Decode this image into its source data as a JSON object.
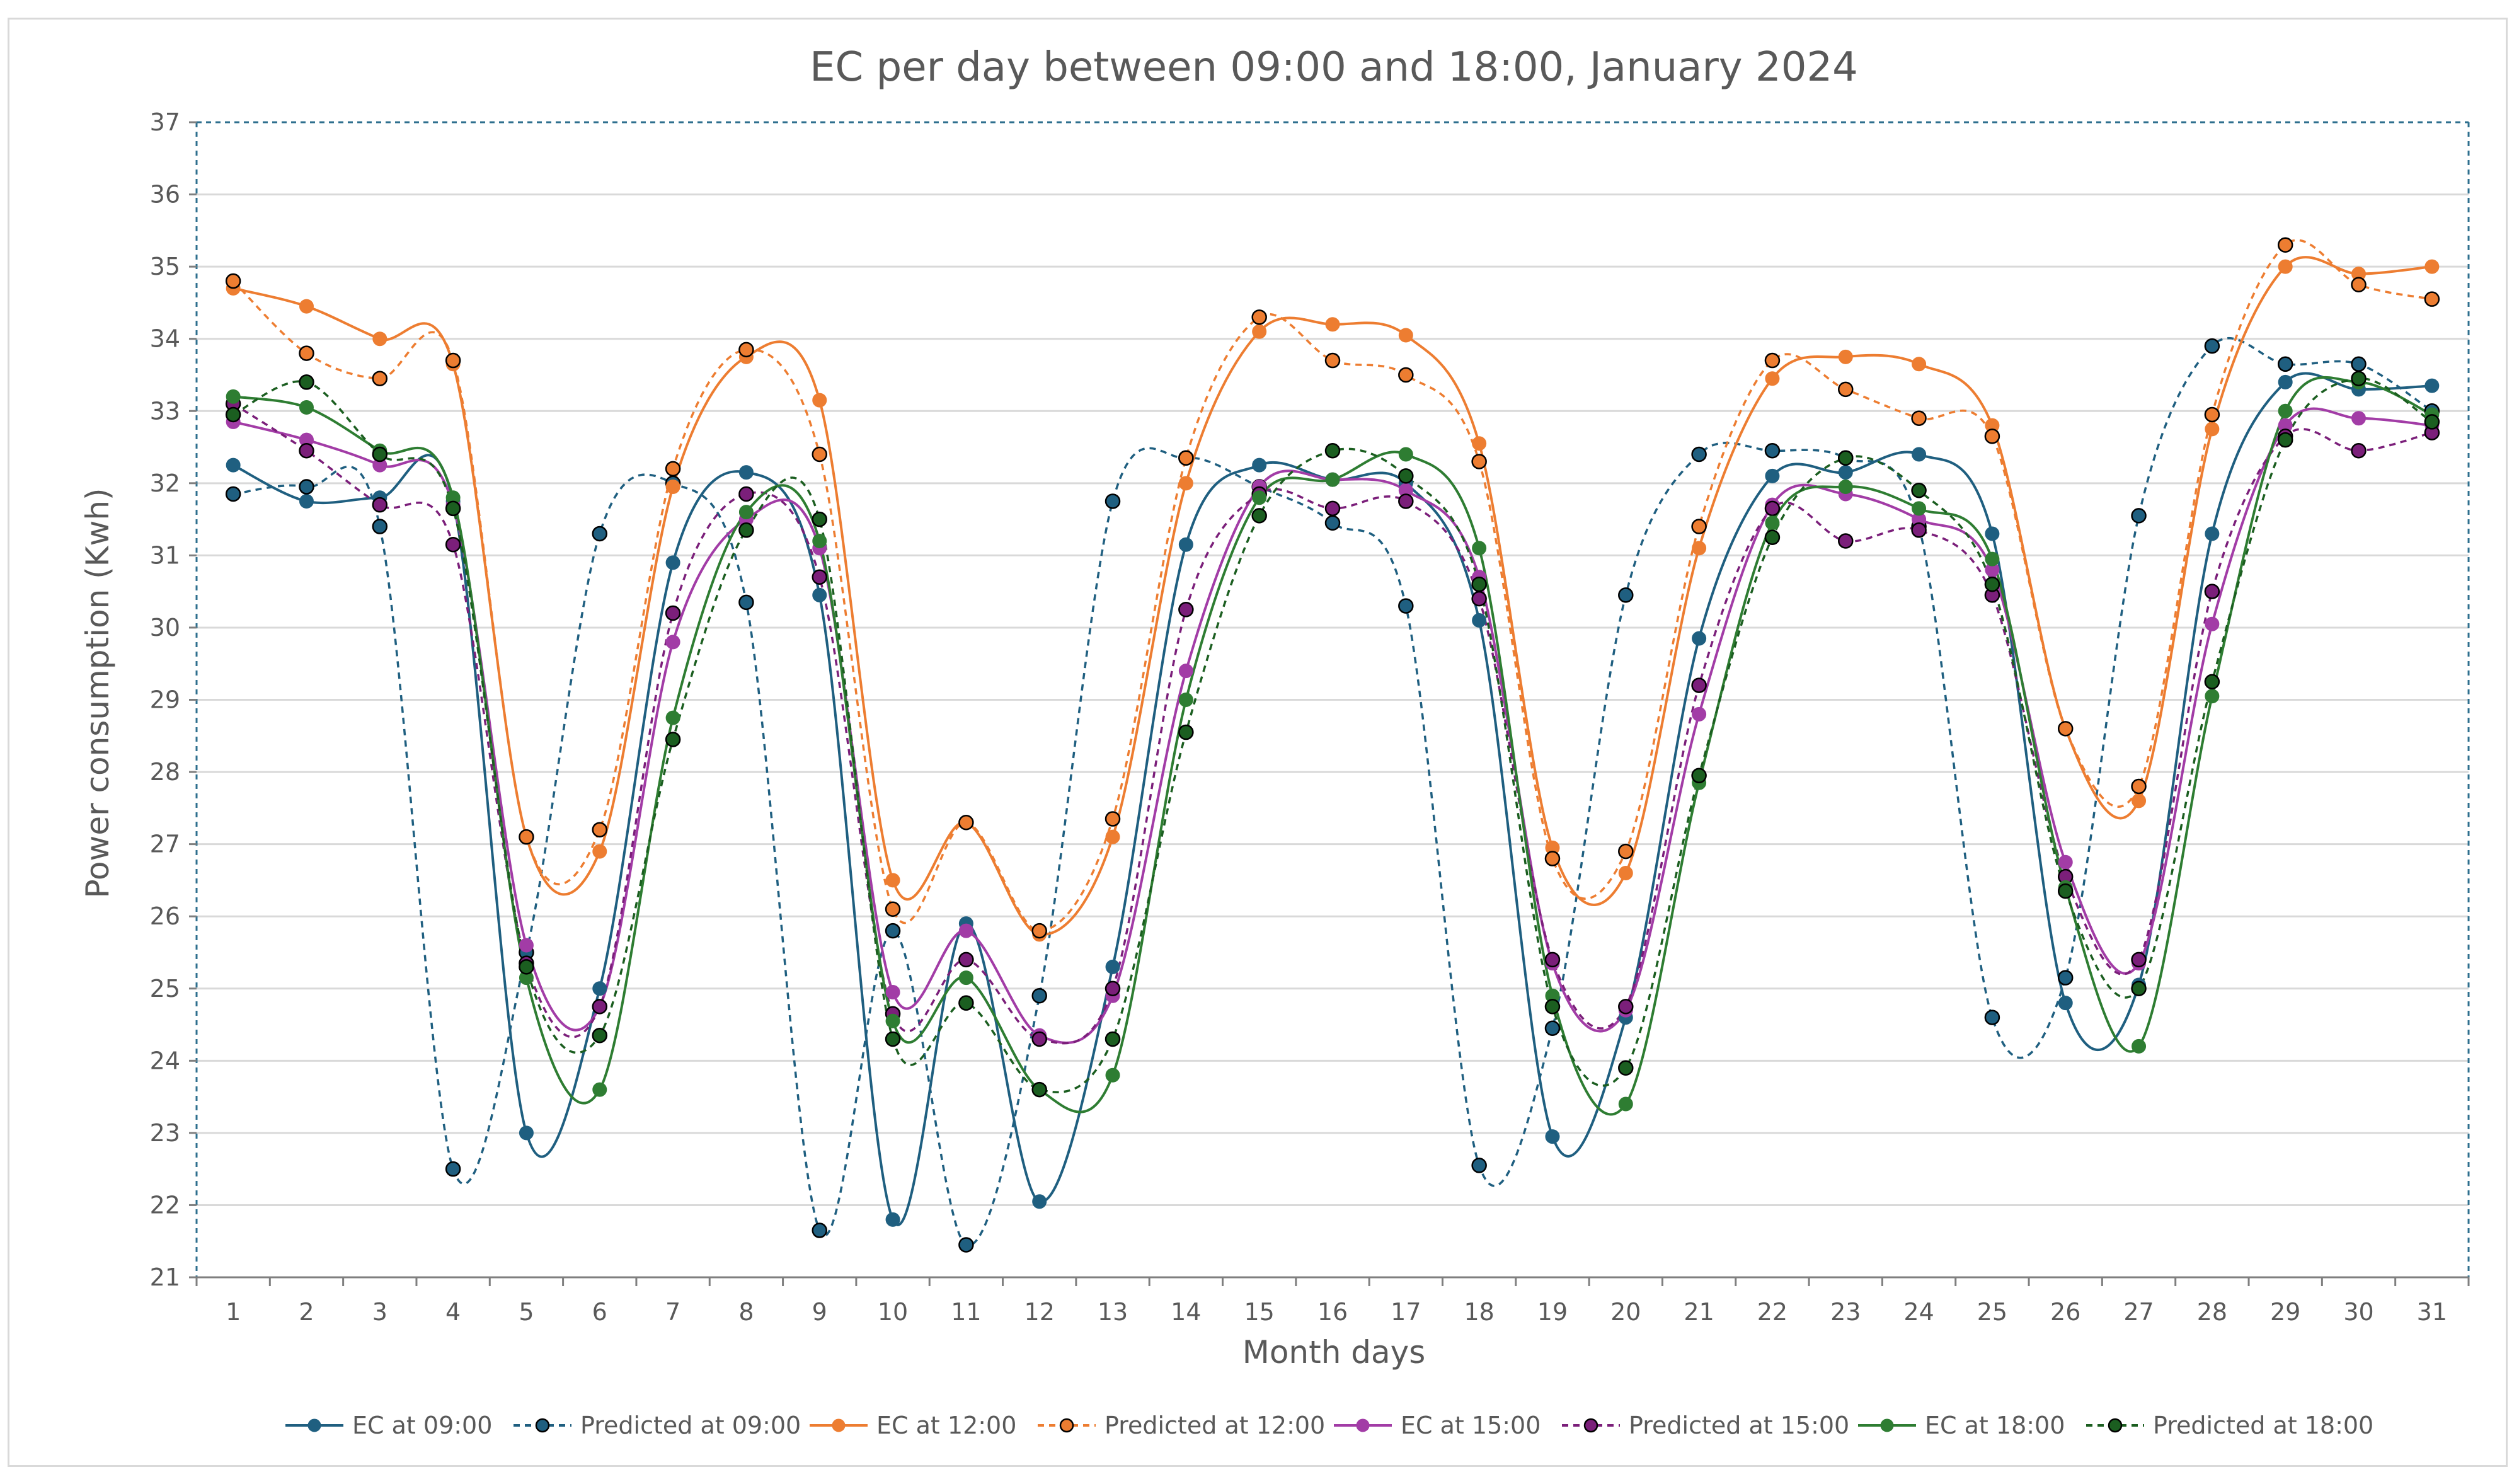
{
  "chart_data": {
    "type": "line",
    "title": "EC per day between 09:00 and 18:00, January 2024",
    "xlabel": "Month days",
    "ylabel": "Power consumption (Kwh)",
    "ylim": [
      21,
      37
    ],
    "yticks": [
      21,
      22,
      23,
      24,
      25,
      26,
      27,
      28,
      29,
      30,
      31,
      32,
      33,
      34,
      35,
      36,
      37
    ],
    "x": [
      1,
      2,
      3,
      4,
      5,
      6,
      7,
      8,
      9,
      10,
      11,
      12,
      13,
      14,
      15,
      16,
      17,
      18,
      19,
      20,
      21,
      22,
      23,
      24,
      25,
      26,
      27,
      28,
      29,
      30,
      31
    ],
    "grid": true,
    "legend": "bottom",
    "series": [
      {
        "name": "EC at 09:00",
        "color": "#1f5f80",
        "dashed": false,
        "values": [
          32.25,
          31.75,
          31.8,
          31.75,
          23.0,
          25.0,
          30.9,
          32.15,
          30.45,
          21.8,
          25.9,
          22.05,
          25.3,
          31.15,
          32.25,
          32.05,
          32.0,
          30.1,
          22.95,
          24.6,
          29.85,
          32.1,
          32.15,
          32.4,
          31.3,
          24.8,
          25.05,
          31.3,
          33.4,
          33.3,
          33.35
        ]
      },
      {
        "name": "Predicted at 09:00",
        "color": "#1f5f80",
        "dashed": true,
        "values": [
          31.85,
          31.95,
          31.4,
          22.5,
          25.5,
          31.3,
          32.0,
          30.35,
          21.65,
          25.8,
          21.45,
          24.9,
          31.75,
          32.35,
          31.95,
          31.45,
          30.3,
          22.55,
          24.45,
          30.45,
          32.4,
          32.45,
          32.35,
          31.4,
          24.6,
          25.15,
          31.55,
          33.9,
          33.65,
          33.65,
          33.0
        ]
      },
      {
        "name": "EC at 12:00",
        "color": "#ed7d31",
        "dashed": false,
        "values": [
          34.7,
          34.45,
          34.0,
          33.65,
          27.1,
          26.9,
          31.95,
          33.75,
          33.15,
          26.5,
          27.3,
          25.75,
          27.1,
          32.0,
          34.1,
          34.2,
          34.05,
          32.55,
          26.95,
          26.6,
          31.1,
          33.45,
          33.75,
          33.65,
          32.8,
          28.6,
          27.6,
          32.75,
          35.0,
          34.9,
          35.0
        ]
      },
      {
        "name": "Predicted at 12:00",
        "color": "#ed7d31",
        "dashed": true,
        "values": [
          34.8,
          33.8,
          33.45,
          33.7,
          27.1,
          27.2,
          32.2,
          33.85,
          32.4,
          26.1,
          27.3,
          25.8,
          27.35,
          32.35,
          34.3,
          33.7,
          33.5,
          32.3,
          26.8,
          26.9,
          31.4,
          33.7,
          33.3,
          32.9,
          32.65,
          28.6,
          27.8,
          32.95,
          35.3,
          34.75,
          34.55
        ]
      },
      {
        "name": "EC at 15:00",
        "color": "#a23ca6",
        "dashed": false,
        "values": [
          32.85,
          32.6,
          32.25,
          31.7,
          25.6,
          24.75,
          29.8,
          31.5,
          31.1,
          24.95,
          25.8,
          24.35,
          24.9,
          29.4,
          31.95,
          32.05,
          31.9,
          30.7,
          25.35,
          24.7,
          28.8,
          31.7,
          31.85,
          31.5,
          30.8,
          26.75,
          25.35,
          30.05,
          32.8,
          32.9,
          32.8
        ]
      },
      {
        "name": "Predicted at 15:00",
        "color": "#7b1f7a",
        "dashed": true,
        "values": [
          33.1,
          32.45,
          31.7,
          31.15,
          25.35,
          24.75,
          30.2,
          31.85,
          30.7,
          24.65,
          25.4,
          24.3,
          25.0,
          30.25,
          31.85,
          31.65,
          31.75,
          30.4,
          25.4,
          24.75,
          29.2,
          31.65,
          31.2,
          31.35,
          30.45,
          26.55,
          25.4,
          30.5,
          32.65,
          32.45,
          32.7
        ]
      },
      {
        "name": "EC at 18:00",
        "color": "#2e7d32",
        "dashed": false,
        "values": [
          33.2,
          33.05,
          32.45,
          31.8,
          25.15,
          23.6,
          28.75,
          31.6,
          31.2,
          24.55,
          25.15,
          23.6,
          23.8,
          29.0,
          31.8,
          32.05,
          32.4,
          31.1,
          24.9,
          23.4,
          27.85,
          31.45,
          31.95,
          31.65,
          30.95,
          26.4,
          24.2,
          29.05,
          33.0,
          33.4,
          32.95
        ]
      },
      {
        "name": "Predicted at 18:00",
        "color": "#1b5e20",
        "dashed": true,
        "values": [
          32.95,
          33.4,
          32.4,
          31.65,
          25.3,
          24.35,
          28.45,
          31.35,
          31.5,
          24.3,
          24.8,
          23.6,
          24.3,
          28.55,
          31.55,
          32.45,
          32.1,
          30.6,
          24.75,
          23.9,
          27.95,
          31.25,
          32.35,
          31.9,
          30.6,
          26.35,
          25.0,
          29.25,
          32.6,
          33.45,
          32.85
        ]
      }
    ]
  }
}
